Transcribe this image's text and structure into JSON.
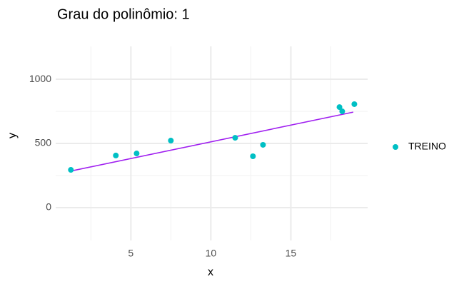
{
  "chart_data": {
    "type": "scatter",
    "title": "Grau do polinômio: 1",
    "x_label": "x",
    "y_label": "y",
    "series": [
      {
        "name": "TREINO",
        "color": "#00bfc4",
        "x": [
          1.25,
          4.06,
          5.36,
          7.5,
          11.52,
          12.63,
          13.26,
          18.04,
          18.21,
          18.97
        ],
        "values": [
          294,
          406,
          422,
          522,
          544,
          400,
          489,
          783,
          750,
          806
        ]
      }
    ],
    "fit": {
      "color": "#a020f0",
      "x": [
        1.25,
        18.9
      ],
      "values": [
        285,
        744
      ]
    },
    "xlim": [
      0.3,
      19.8
    ],
    "ylim": [
      -256,
      1256
    ],
    "xticks": [
      5,
      10,
      15
    ],
    "yticks": [
      0,
      500,
      1000
    ],
    "xminor": [
      2.5,
      7.5,
      12.5,
      17.5
    ],
    "yminor": [
      250,
      750
    ],
    "grid": true,
    "legend": "right"
  }
}
